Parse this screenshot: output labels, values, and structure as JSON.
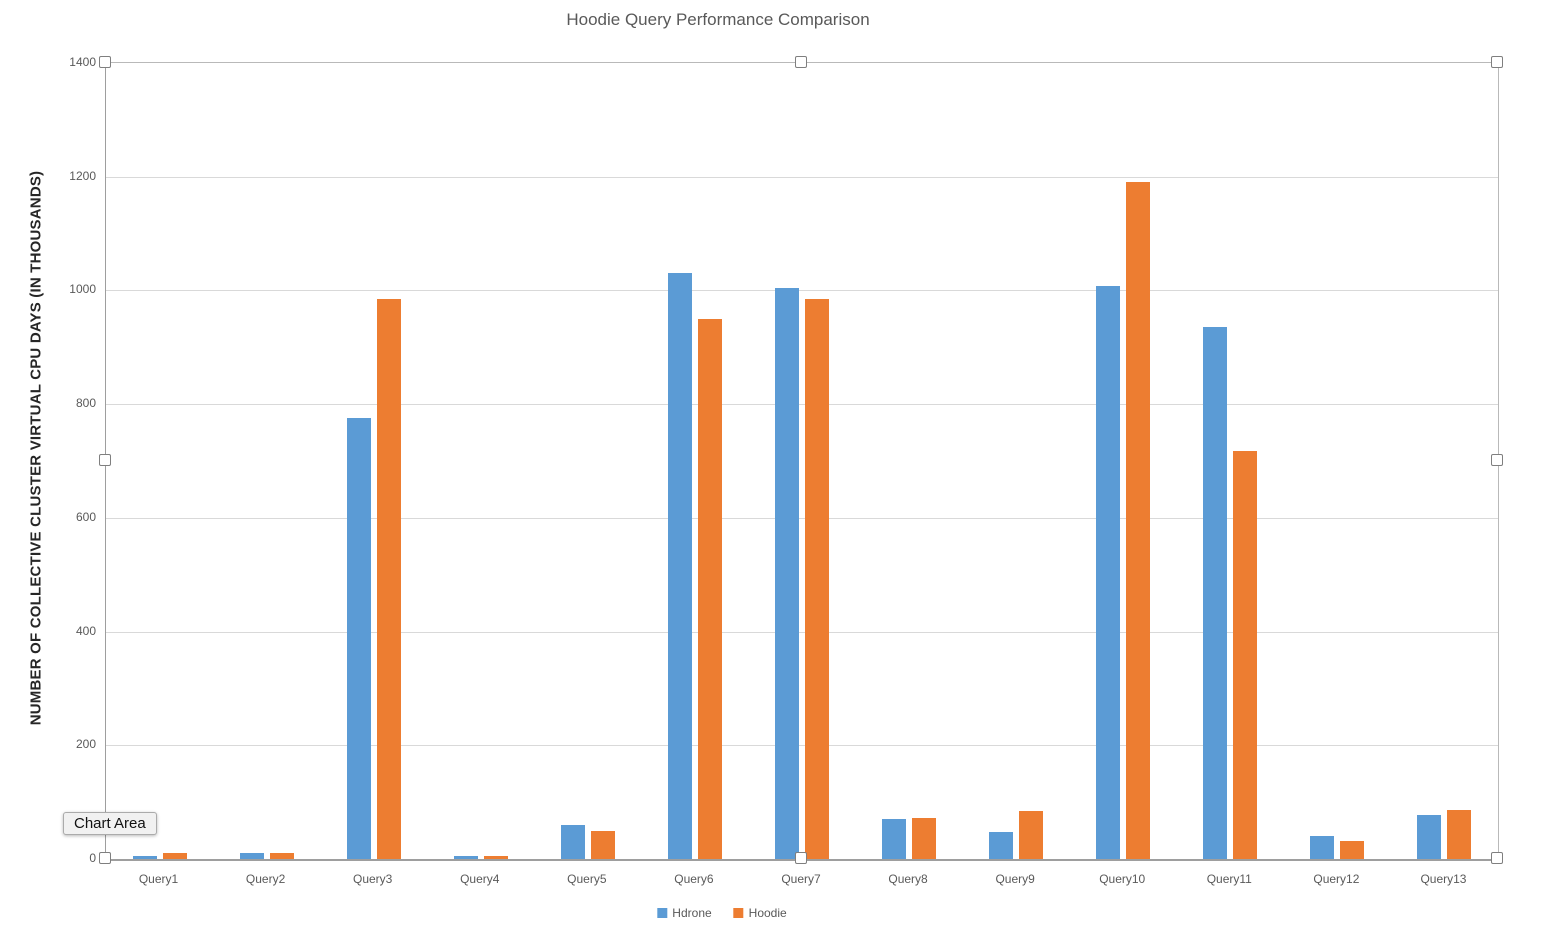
{
  "chart_title": "Hoodie Query Performance Comparison",
  "tooltip_label": "Chart Area",
  "chart_data": {
    "type": "bar",
    "title": "Hoodie Query Performance Comparison",
    "xlabel": "",
    "ylabel": "NUMBER OF COLLECTIVE CLUSTER VIRTUAL CPU DAYS (IN THOUSANDS)",
    "ylim": [
      0,
      1400
    ],
    "yticks": [
      0,
      200,
      400,
      600,
      800,
      1000,
      1200,
      1400
    ],
    "grid": true,
    "legend_position": "bottom",
    "categories": [
      "Query1",
      "Query2",
      "Query3",
      "Query4",
      "Query5",
      "Query6",
      "Query7",
      "Query8",
      "Query9",
      "Query10",
      "Query11",
      "Query12",
      "Query13"
    ],
    "series": [
      {
        "name": "Hdrone",
        "color": "#5B9BD5",
        "values": [
          5,
          10,
          775,
          5,
          60,
          1030,
          1005,
          70,
          48,
          1008,
          935,
          40,
          78
        ]
      },
      {
        "name": "Hoodie",
        "color": "#ED7D31",
        "values": [
          10,
          10,
          985,
          5,
          50,
          950,
          985,
          72,
          85,
          1190,
          718,
          32,
          87
        ]
      }
    ]
  },
  "colors": {
    "series_hdrone": "#5B9BD5",
    "series_hoodie": "#ED7D31",
    "gridline": "#d9d9d9",
    "axis_text": "#595959",
    "title_text": "#595959"
  }
}
